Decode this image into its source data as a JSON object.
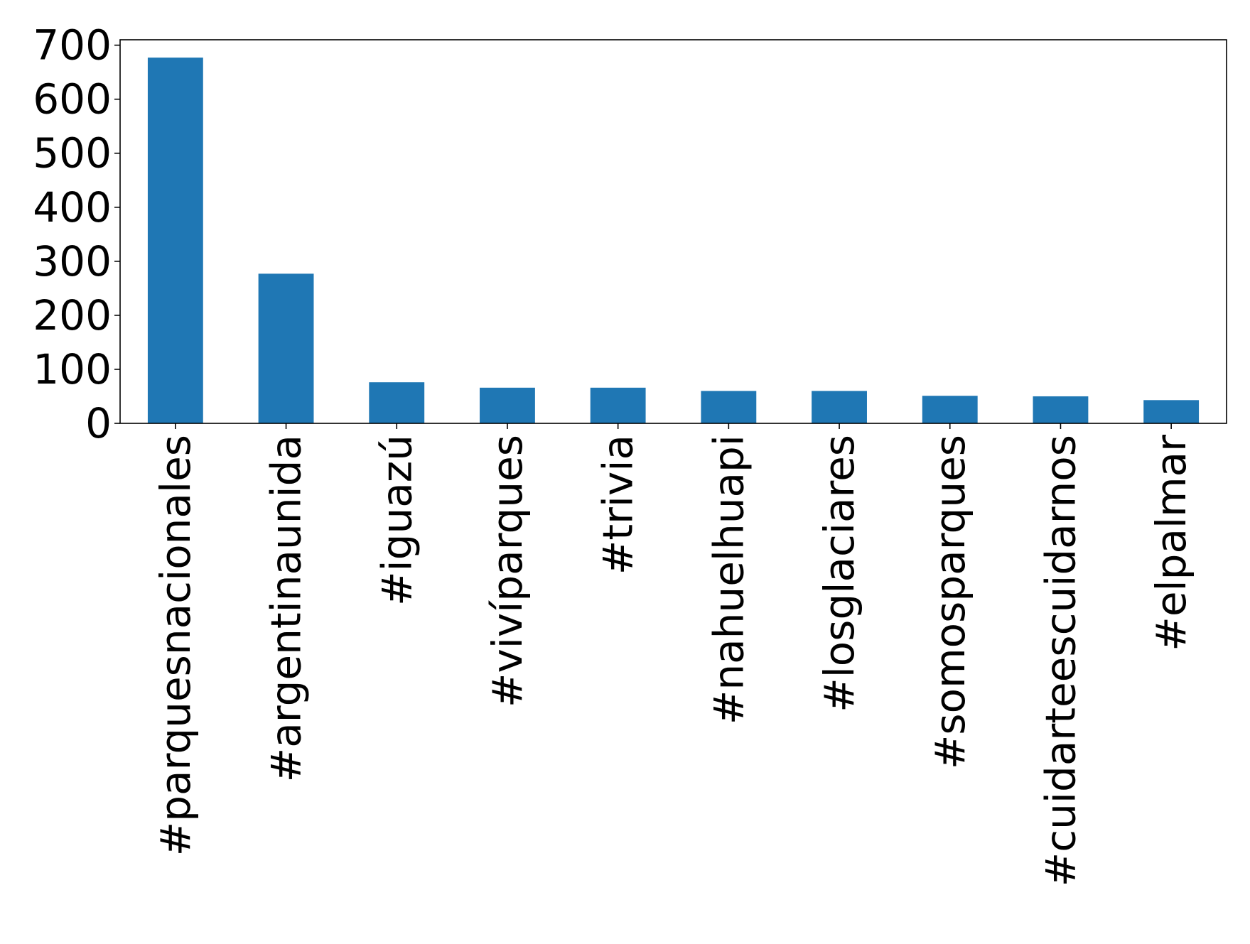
{
  "chart_data": {
    "type": "bar",
    "title": "",
    "xlabel": "",
    "ylabel": "",
    "categories": [
      "#parquesnacionales",
      "#argentinaunida",
      "#iguazú",
      "#vivíparques",
      "#trivia",
      "#nahuelhuapi",
      "#losglaciares",
      "#somosparques",
      "#cuidarteescuidarnos",
      "#elpalmar"
    ],
    "values": [
      677,
      277,
      76,
      66,
      66,
      60,
      60,
      51,
      50,
      43
    ],
    "ylim": [
      0,
      710
    ],
    "yticks": [
      0,
      100,
      200,
      300,
      400,
      500,
      600,
      700
    ],
    "grid": false,
    "legend": "none",
    "bar_color": "#1f77b4"
  }
}
